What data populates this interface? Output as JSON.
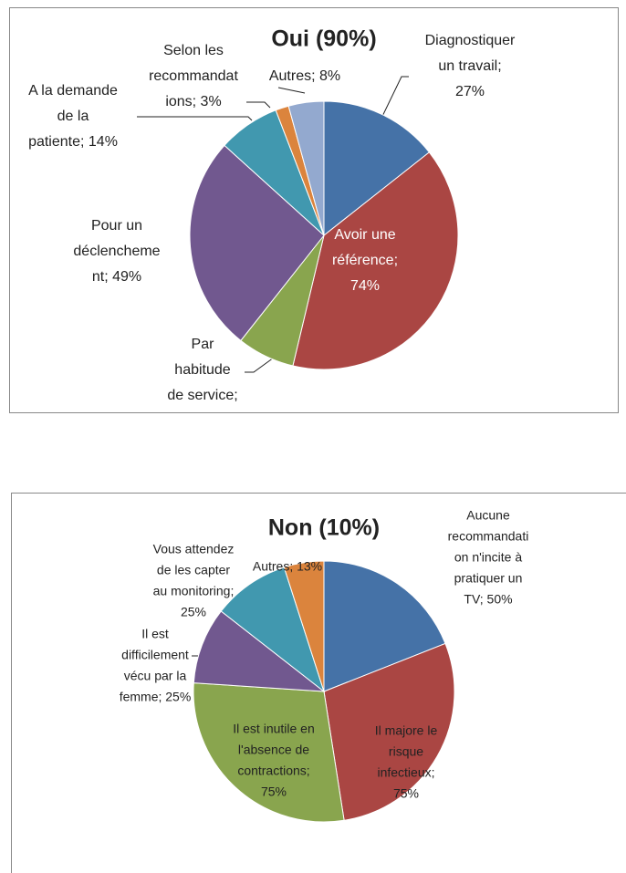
{
  "chart_data": [
    {
      "type": "pie",
      "title": "Oui (90%)",
      "values": [
        27,
        74,
        13,
        49,
        14,
        3,
        8
      ],
      "colors": [
        "#4572a7",
        "#aa4643",
        "#89a54e",
        "#71588f",
        "#4198af",
        "#db843d",
        "#93a9cf"
      ],
      "labels": [
        [
          "Diagnostiquer",
          "un travail;",
          "27%"
        ],
        [
          "Avoir une",
          "référence;",
          "74%"
        ],
        [
          "Par",
          "habitude",
          "de service;"
        ],
        [
          "Pour un",
          "déclencheme",
          "nt; 49%"
        ],
        [
          "A la demande",
          "de la",
          "patiente; 14%"
        ],
        [
          "Selon les",
          "recommandat",
          "ions; 3%"
        ],
        [
          "Autres; 8%"
        ]
      ]
    },
    {
      "type": "pie",
      "title": "Non (10%)",
      "values": [
        50,
        75,
        75,
        25,
        25,
        13
      ],
      "colors": [
        "#4572a7",
        "#aa4643",
        "#89a54e",
        "#71588f",
        "#4198af",
        "#db843d"
      ],
      "labels": [
        [
          "Aucune",
          "recommandati",
          "on n'incite à",
          "pratiquer un",
          "TV; 50%"
        ],
        [
          "Il majore le",
          "risque",
          "infectieux;",
          "75%"
        ],
        [
          "Il est inutile en",
          "l'absence de",
          "contractions;",
          "75%"
        ],
        [
          "Il est",
          "difficilement",
          "vécu par la",
          "femme; 25%"
        ],
        [
          "Vous attendez",
          "de les capter",
          "au monitoring;",
          "25%"
        ],
        [
          "Autres; 13%"
        ]
      ]
    }
  ]
}
